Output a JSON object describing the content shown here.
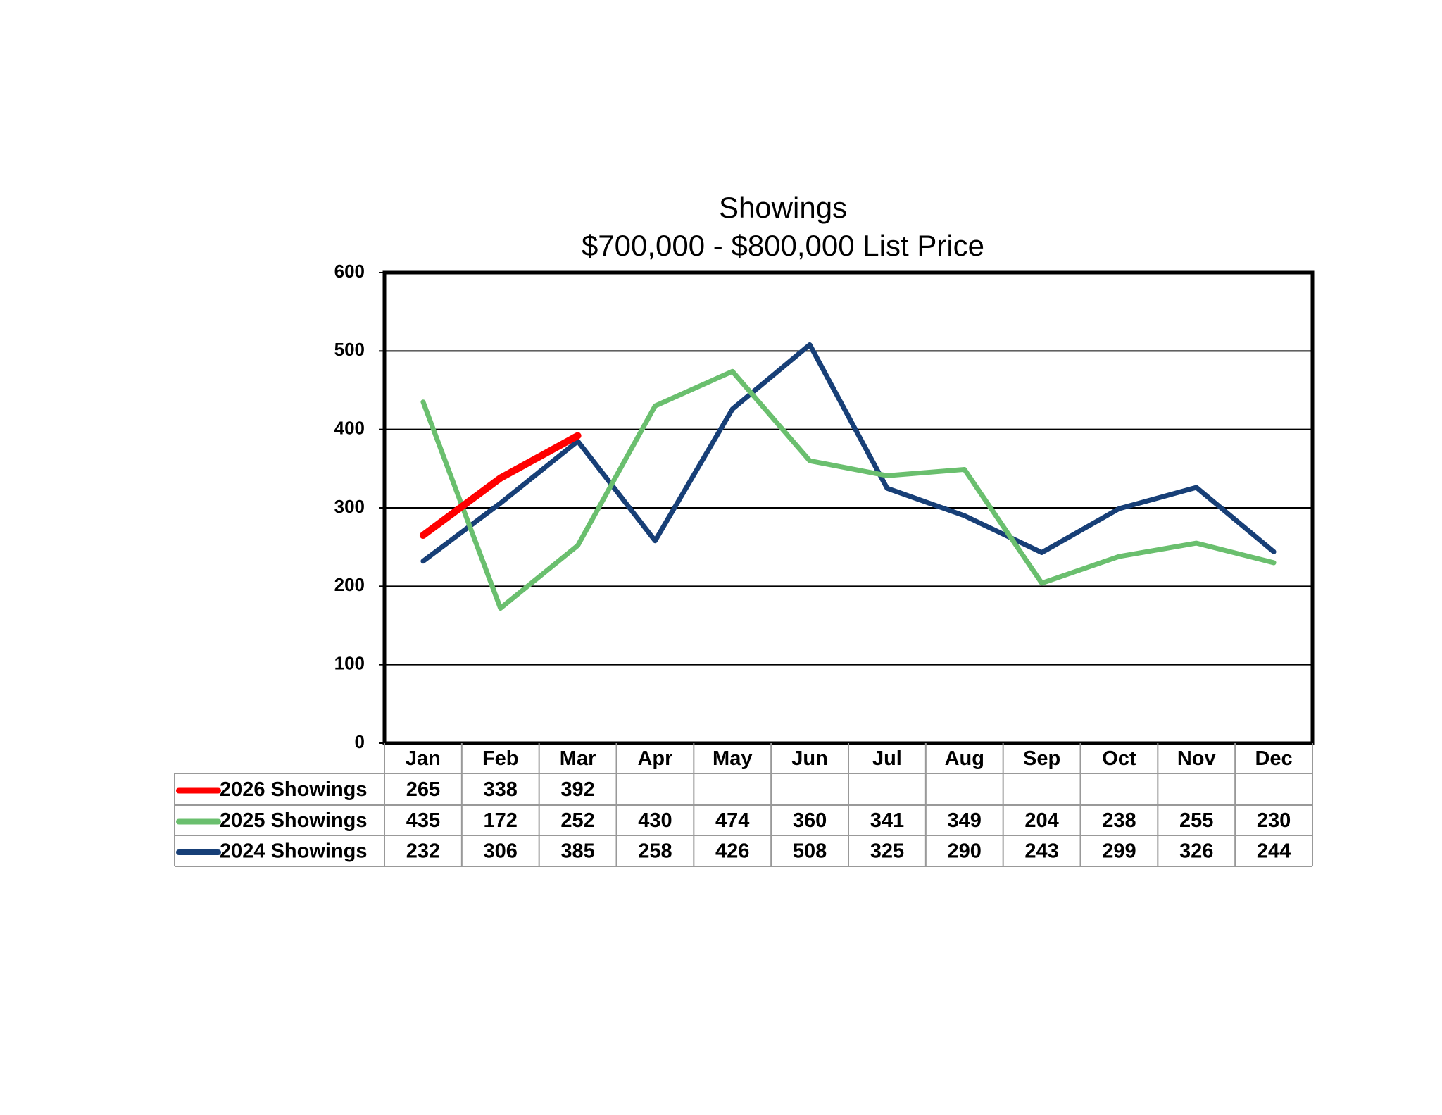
{
  "chart_data": {
    "type": "line",
    "title": "Showings",
    "subtitle": "$700,000 - $800,000 List Price",
    "categories": [
      "Jan",
      "Feb",
      "Mar",
      "Apr",
      "May",
      "Jun",
      "Jul",
      "Aug",
      "Sep",
      "Oct",
      "Nov",
      "Dec"
    ],
    "series": [
      {
        "name": "2026 Showings",
        "color": "#ff0000",
        "values": [
          265,
          338,
          392,
          null,
          null,
          null,
          null,
          null,
          null,
          null,
          null,
          null
        ]
      },
      {
        "name": "2025 Showings",
        "color": "#6abf6e",
        "values": [
          435,
          172,
          252,
          430,
          474,
          360,
          341,
          349,
          204,
          238,
          255,
          230
        ]
      },
      {
        "name": "2024 Showings",
        "color": "#173f77",
        "values": [
          232,
          306,
          385,
          258,
          426,
          508,
          325,
          290,
          243,
          299,
          326,
          244
        ]
      }
    ],
    "ylim": [
      0,
      600
    ],
    "yticks": [
      0,
      100,
      200,
      300,
      400,
      500,
      600
    ],
    "grid": true
  }
}
